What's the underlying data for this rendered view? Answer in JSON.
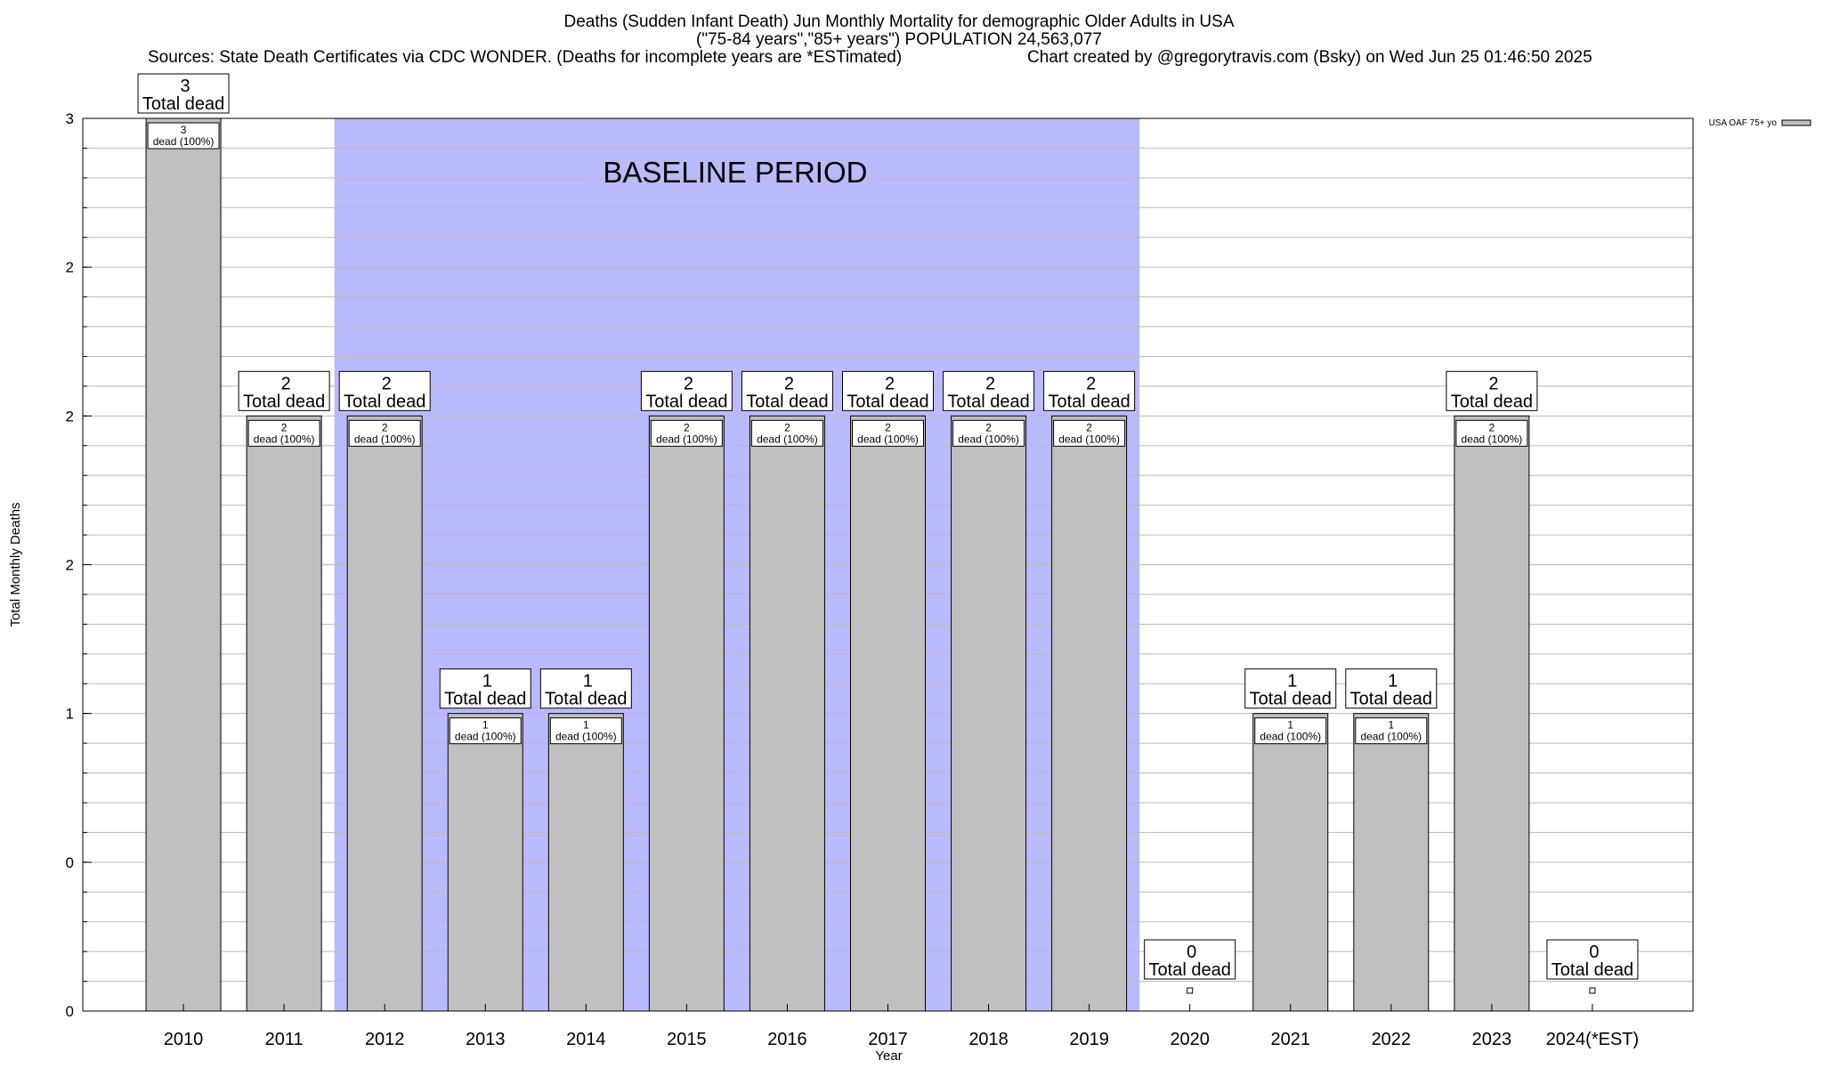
{
  "chart_data": {
    "type": "bar",
    "title_lines": [
      "Deaths (Sudden Infant Death) Jun Monthly Mortality for demographic Older Adults in USA",
      "(\"75-84 years\",\"85+ years\") POPULATION 24,563,077"
    ],
    "sources_text": "Sources: State Death Certificates via CDC WONDER. (Deaths for incomplete years are *ESTimated)",
    "credit_text": "Chart created by @gregorytravis.com (Bsky) on Wed Jun 25 01:46:50 2025",
    "xlabel": "Year",
    "ylabel": "Total Monthly Deaths",
    "ylim": [
      0,
      3
    ],
    "y_tick_labels": [
      "0",
      "0",
      "1",
      "2",
      "2",
      "2",
      "3"
    ],
    "categories": [
      "2010",
      "2011",
      "2012",
      "2013",
      "2014",
      "2015",
      "2016",
      "2017",
      "2018",
      "2019",
      "2020",
      "2021",
      "2022",
      "2023",
      "2024(*EST)"
    ],
    "series": [
      {
        "name": "USA OAF 75+ yo",
        "values": [
          3,
          2,
          2,
          1,
          1,
          2,
          2,
          2,
          2,
          2,
          0,
          1,
          1,
          2,
          0
        ]
      }
    ],
    "total_label_suffix": "Total dead",
    "inner_label_suffix": "dead (100%)",
    "baseline": {
      "label": "BASELINE PERIOD",
      "start": "2012",
      "end": "2019"
    },
    "grid": true,
    "legend_position": "top-right"
  },
  "colors": {
    "bar_fill": "#c0c0c0",
    "baseline_fill": "#babaff",
    "grid": "#bbbbbb"
  }
}
